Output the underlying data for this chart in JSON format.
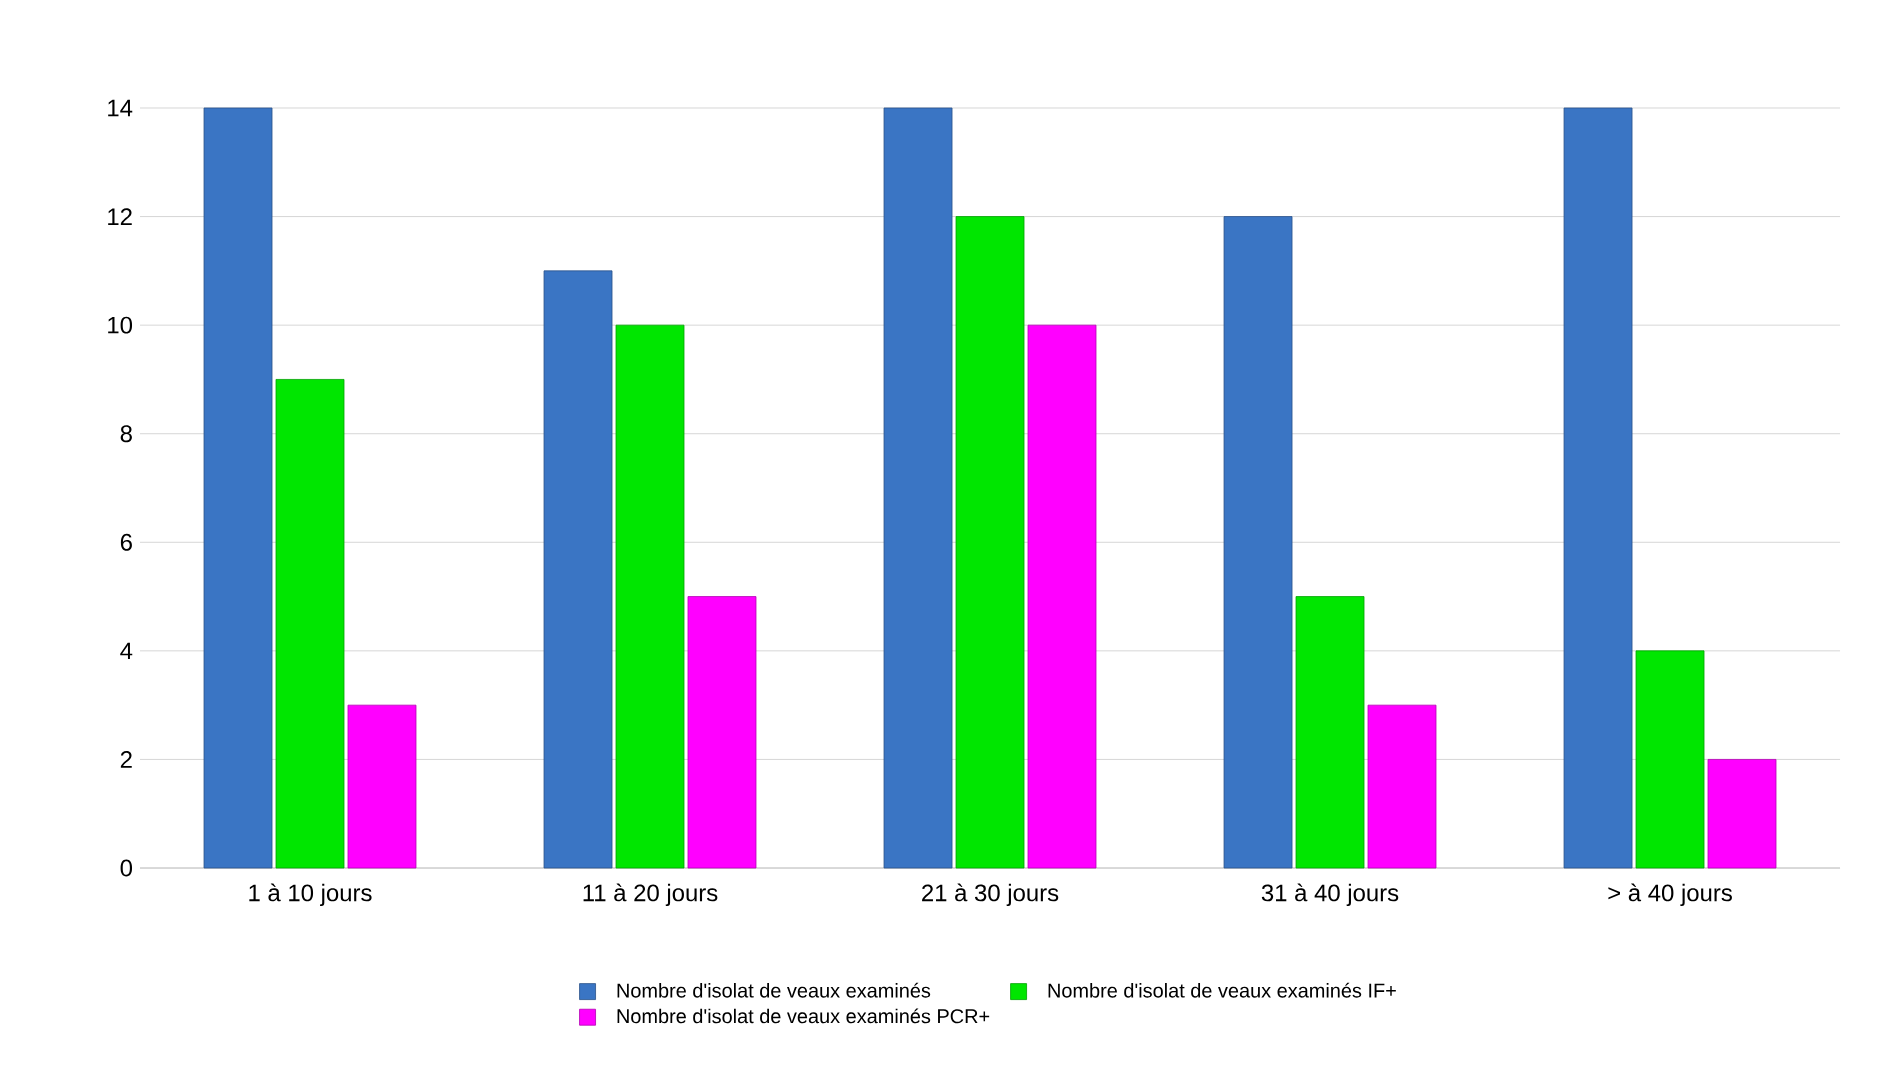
{
  "chart_data": {
    "type": "bar",
    "categories": [
      "1 à 10 jours",
      "11 à 20 jours",
      "21 à 30 jours",
      "31 à 40 jours",
      "> à 40 jours"
    ],
    "series": [
      {
        "name": "Nombre d'isolat de veaux examinés",
        "color": "#3a75c4",
        "values": [
          14,
          11,
          14,
          12,
          14
        ]
      },
      {
        "name": "Nombre d'isolat de veaux examinés IF+",
        "color": "#00e600",
        "values": [
          9,
          10,
          12,
          5,
          4
        ]
      },
      {
        "name": "Nombre d'isolat de veaux examinés PCR+",
        "color": "#ff00ff",
        "values": [
          3,
          5,
          10,
          3,
          2
        ]
      }
    ],
    "ylim": [
      0,
      14
    ],
    "yticks": [
      0,
      2,
      4,
      6,
      8,
      10,
      12,
      14
    ],
    "grid": "y",
    "legend": "bottom"
  }
}
